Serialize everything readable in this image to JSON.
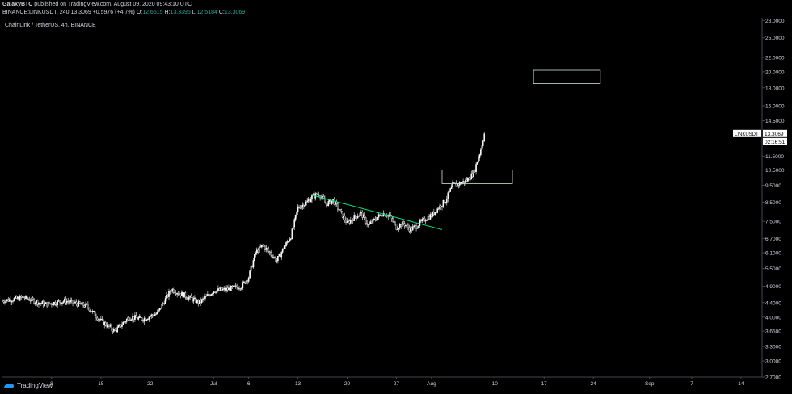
{
  "header": {
    "line1_user": "GalaxyBTC",
    "line1_rest": " published on TradingView.com, August 09, 2020 09:43:10 UTC",
    "line2_prefix": "BINANCE:LINKUSDT, 240",
    "line2_price": "13.3069",
    "line2_change": "+0.5976 (+4.7%)",
    "o_label": "O:",
    "o_val": "12.6515",
    "h_label": "H:",
    "h_val": "13.3395",
    "l_label": "L:",
    "l_val": "12.5184",
    "c_label": "C:",
    "c_val": "13.3069"
  },
  "chart_title": "ChainLink / TetherUS, 4h, BINANCE",
  "footer": {
    "logo_text": "TradingView"
  },
  "colors": {
    "background": "#000000",
    "up": "#ffffff",
    "down": "#ffffff",
    "trendline": "#00e676",
    "box": "#c8e6c9",
    "axis_text": "#d1d4dc"
  },
  "chart_data": {
    "type": "candlestick",
    "symbol": "LINKUSDT",
    "y_scale": "log",
    "ylim": [
      2.7,
      28.5
    ],
    "y_ticks": [
      "28.0000",
      "25.0000",
      "22.0000",
      "20.0000",
      "18.0000",
      "16.0000",
      "14.5000",
      "11.5000",
      "10.5000",
      "9.5000",
      "8.5000",
      "7.5000",
      "6.7000",
      "6.1000",
      "5.5000",
      "4.9000",
      "4.4000",
      "4.0000",
      "3.6500",
      "3.3000",
      "3.0000",
      "2.7000"
    ],
    "x_ticks": [
      "8",
      "15",
      "22",
      "Jul",
      "6",
      "13",
      "20",
      "27",
      "Aug",
      "10",
      "17",
      "24",
      "Sep",
      "7",
      "14"
    ],
    "x_tick_days": [
      7,
      14,
      21,
      30,
      35,
      42,
      49,
      56,
      61,
      70,
      77,
      84,
      92,
      98,
      105
    ],
    "last_price_label": "LINKUSDT",
    "last_price": "13.3069",
    "countdown": "02:16:51",
    "price_path": [
      [
        0,
        4.45
      ],
      [
        3,
        4.55
      ],
      [
        6,
        4.35
      ],
      [
        9,
        4.45
      ],
      [
        12,
        4.3
      ],
      [
        14,
        3.9
      ],
      [
        16,
        3.65
      ],
      [
        18,
        4.0
      ],
      [
        20,
        3.95
      ],
      [
        22,
        4.1
      ],
      [
        24,
        4.8
      ],
      [
        26,
        4.6
      ],
      [
        28,
        4.4
      ],
      [
        30,
        4.75
      ],
      [
        32,
        4.8
      ],
      [
        34,
        4.9
      ],
      [
        35,
        5.2
      ],
      [
        36,
        6.1
      ],
      [
        37,
        6.4
      ],
      [
        38,
        6.1
      ],
      [
        39,
        5.8
      ],
      [
        40,
        6.3
      ],
      [
        41,
        6.8
      ],
      [
        42,
        8.2
      ],
      [
        43,
        8.4
      ],
      [
        44,
        8.8
      ],
      [
        45,
        9.0
      ],
      [
        46,
        8.4
      ],
      [
        47,
        8.6
      ],
      [
        48,
        8.0
      ],
      [
        49,
        7.4
      ],
      [
        50,
        7.7
      ],
      [
        51,
        7.9
      ],
      [
        52,
        7.3
      ],
      [
        53,
        7.6
      ],
      [
        54,
        7.9
      ],
      [
        55,
        7.8
      ],
      [
        56,
        7.2
      ],
      [
        57,
        7.4
      ],
      [
        58,
        7.1
      ],
      [
        59,
        7.3
      ],
      [
        60,
        7.6
      ],
      [
        61,
        7.8
      ],
      [
        62,
        8.2
      ],
      [
        63,
        8.6
      ],
      [
        64,
        9.5
      ],
      [
        65,
        9.6
      ],
      [
        66,
        9.8
      ],
      [
        67,
        10.3
      ],
      [
        68,
        12.0
      ],
      [
        68.5,
        13.3069
      ]
    ],
    "annotations": [
      {
        "type": "trendline",
        "from": [
          44,
          8.9
        ],
        "to": [
          62.5,
          7.1
        ]
      },
      {
        "type": "rect",
        "x": [
          62.5,
          72.5
        ],
        "y": [
          9.6,
          10.5
        ]
      },
      {
        "type": "rect",
        "x": [
          75.5,
          85
        ],
        "y": [
          18.5,
          20.2
        ]
      }
    ]
  }
}
